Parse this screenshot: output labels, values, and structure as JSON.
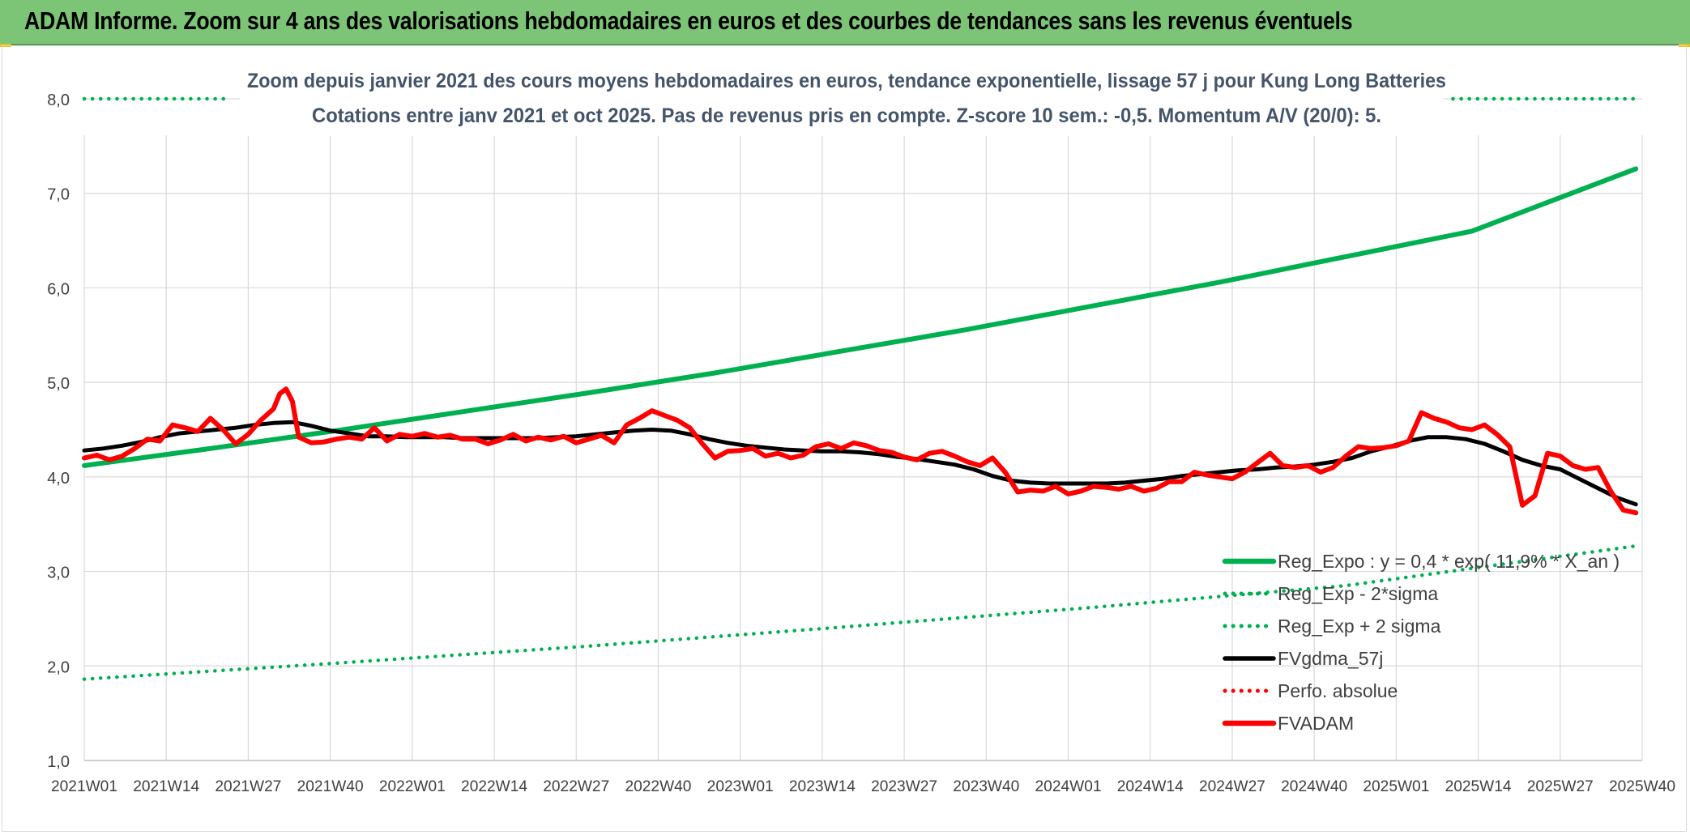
{
  "banner": {
    "title": "ADAM Informe. Zoom sur 4 ans des valorisations hebdomadaires en euros et des courbes de tendances sans les revenus éventuels"
  },
  "chart_data": {
    "type": "line",
    "title_line1": "Zoom depuis janvier 2021 des cours moyens hebdomadaires en euros, tendance exponentielle, lissage 57 j pour Kung Long Batteries",
    "title_line2": "Cotations entre janv 2021 et oct 2025. Pas de revenus pris en compte. Z-score 10 sem.: -0,5. Momentum A/V (20/0): 5.",
    "ylim": [
      1.0,
      8.0
    ],
    "y_ticks": [
      1.0,
      2.0,
      3.0,
      4.0,
      5.0,
      6.0,
      7.0,
      8.0
    ],
    "y_tick_labels": [
      "1,0",
      "2,0",
      "3,0",
      "4,0",
      "5,0",
      "6,0",
      "7,0",
      "8,0"
    ],
    "x_range_weeks": [
      0,
      246
    ],
    "x_ticks": [
      0,
      13,
      26,
      39,
      52,
      65,
      78,
      91,
      104,
      117,
      130,
      143,
      156,
      169,
      182,
      195,
      208,
      221,
      234,
      247
    ],
    "x_tick_labels": [
      "2021W01",
      "2021W14",
      "2021W27",
      "2021W40",
      "2022W01",
      "2022W14",
      "2022W27",
      "2022W40",
      "2023W01",
      "2023W14",
      "2023W27",
      "2023W40",
      "2024W01",
      "2024W14",
      "2024W27",
      "2024W40",
      "2025W01",
      "2025W14",
      "2025W27",
      "2025W40"
    ],
    "legend_position": "bottom-right",
    "series": [
      {
        "name": "Reg_Expo : y = 0,4 * exp( 11,9% * X_an )",
        "style": "thick-solid",
        "color": "#00b050",
        "x": [
          0,
          20,
          40,
          60,
          80,
          100,
          120,
          140,
          160,
          180,
          200,
          220,
          246
        ],
        "values": [
          4.12,
          4.3,
          4.49,
          4.69,
          4.89,
          5.1,
          5.33,
          5.56,
          5.81,
          6.06,
          6.33,
          6.6,
          7.26
        ]
      },
      {
        "name": "Reg_Exp - 2*sigma",
        "style": "dotted",
        "color": "#00b050",
        "x": [
          0,
          40,
          80,
          120,
          160,
          200,
          246
        ],
        "values": [
          1.86,
          2.03,
          2.21,
          2.41,
          2.62,
          2.85,
          3.27
        ]
      },
      {
        "name": "Reg_Exp + 2 sigma",
        "style": "dotted",
        "color": "#00b050",
        "x": [
          0,
          23,
          217,
          246
        ],
        "values": [
          8.0,
          8.0,
          8.0,
          8.0
        ],
        "segments": [
          [
            0,
            23
          ],
          [
            217,
            246
          ]
        ]
      },
      {
        "name": "FVgdma_57j",
        "style": "solid",
        "color": "#000000",
        "x": [
          0,
          3,
          6,
          9,
          12,
          15,
          18,
          21,
          24,
          27,
          30,
          33,
          36,
          39,
          42,
          45,
          48,
          51,
          54,
          57,
          60,
          63,
          66,
          69,
          72,
          75,
          78,
          81,
          84,
          87,
          90,
          93,
          96,
          99,
          102,
          105,
          108,
          111,
          114,
          117,
          120,
          123,
          126,
          129,
          132,
          135,
          138,
          141,
          144,
          147,
          150,
          153,
          156,
          159,
          162,
          165,
          168,
          171,
          174,
          177,
          180,
          183,
          186,
          189,
          192,
          195,
          198,
          201,
          204,
          207,
          210,
          213,
          216,
          219,
          222,
          225,
          228,
          231,
          234,
          237,
          240,
          243,
          246
        ],
        "values": [
          4.28,
          4.3,
          4.33,
          4.37,
          4.42,
          4.46,
          4.48,
          4.5,
          4.52,
          4.55,
          4.57,
          4.58,
          4.54,
          4.49,
          4.46,
          4.43,
          4.43,
          4.42,
          4.42,
          4.42,
          4.41,
          4.41,
          4.41,
          4.41,
          4.41,
          4.42,
          4.43,
          4.45,
          4.47,
          4.49,
          4.5,
          4.49,
          4.45,
          4.4,
          4.36,
          4.33,
          4.31,
          4.29,
          4.28,
          4.27,
          4.27,
          4.26,
          4.24,
          4.21,
          4.19,
          4.16,
          4.13,
          4.08,
          4.01,
          3.96,
          3.94,
          3.93,
          3.93,
          3.93,
          3.93,
          3.94,
          3.96,
          3.98,
          4.01,
          4.03,
          4.05,
          4.07,
          4.08,
          4.1,
          4.11,
          4.13,
          4.16,
          4.2,
          4.27,
          4.32,
          4.38,
          4.42,
          4.42,
          4.4,
          4.35,
          4.27,
          4.18,
          4.12,
          4.08,
          3.98,
          3.88,
          3.78,
          3.71
        ]
      },
      {
        "name": "Perfo. absolue",
        "style": "dotted",
        "color": "#ff0000",
        "x": [],
        "values": []
      },
      {
        "name": "FVADAM",
        "style": "thick-solid",
        "color": "#ff0000",
        "x": [
          0,
          2,
          4,
          6,
          8,
          10,
          12,
          14,
          16,
          18,
          20,
          22,
          24,
          26,
          28,
          30,
          31,
          32,
          33,
          34,
          36,
          38,
          40,
          42,
          44,
          46,
          48,
          50,
          52,
          54,
          56,
          58,
          60,
          62,
          64,
          66,
          68,
          70,
          72,
          74,
          76,
          78,
          80,
          82,
          84,
          86,
          88,
          90,
          92,
          94,
          96,
          98,
          100,
          102,
          104,
          106,
          108,
          110,
          112,
          114,
          116,
          118,
          120,
          122,
          124,
          126,
          128,
          130,
          132,
          134,
          136,
          138,
          140,
          142,
          144,
          146,
          148,
          150,
          152,
          154,
          156,
          158,
          160,
          162,
          164,
          166,
          168,
          170,
          172,
          174,
          176,
          178,
          180,
          182,
          184,
          186,
          188,
          190,
          192,
          194,
          196,
          198,
          200,
          202,
          204,
          206,
          208,
          210,
          212,
          214,
          216,
          218,
          220,
          222,
          224,
          226,
          228,
          230,
          232,
          234,
          236,
          238,
          240,
          242,
          244,
          246
        ],
        "values": [
          4.2,
          4.23,
          4.18,
          4.22,
          4.3,
          4.4,
          4.38,
          4.55,
          4.52,
          4.48,
          4.62,
          4.5,
          4.35,
          4.45,
          4.6,
          4.72,
          4.88,
          4.93,
          4.8,
          4.42,
          4.36,
          4.37,
          4.4,
          4.42,
          4.4,
          4.52,
          4.38,
          4.45,
          4.43,
          4.46,
          4.42,
          4.44,
          4.4,
          4.4,
          4.35,
          4.39,
          4.45,
          4.38,
          4.42,
          4.39,
          4.43,
          4.36,
          4.4,
          4.44,
          4.36,
          4.55,
          4.62,
          4.7,
          4.65,
          4.6,
          4.52,
          4.35,
          4.2,
          4.27,
          4.28,
          4.3,
          4.22,
          4.25,
          4.2,
          4.23,
          4.32,
          4.35,
          4.3,
          4.36,
          4.33,
          4.28,
          4.26,
          4.21,
          4.18,
          4.25,
          4.27,
          4.22,
          4.16,
          4.12,
          4.2,
          4.05,
          3.84,
          3.86,
          3.85,
          3.9,
          3.82,
          3.85,
          3.9,
          3.89,
          3.87,
          3.9,
          3.85,
          3.88,
          3.95,
          3.95,
          4.05,
          4.02,
          4.0,
          3.98,
          4.05,
          4.15,
          4.25,
          4.12,
          4.1,
          4.12,
          4.05,
          4.1,
          4.22,
          4.32,
          4.3,
          4.31,
          4.33,
          4.38,
          4.68,
          4.62,
          4.58,
          4.52,
          4.5,
          4.55,
          4.45,
          4.32,
          3.7,
          3.8,
          4.25,
          4.22,
          4.12,
          4.08,
          4.1,
          3.85,
          3.65,
          3.62
        ]
      }
    ]
  }
}
